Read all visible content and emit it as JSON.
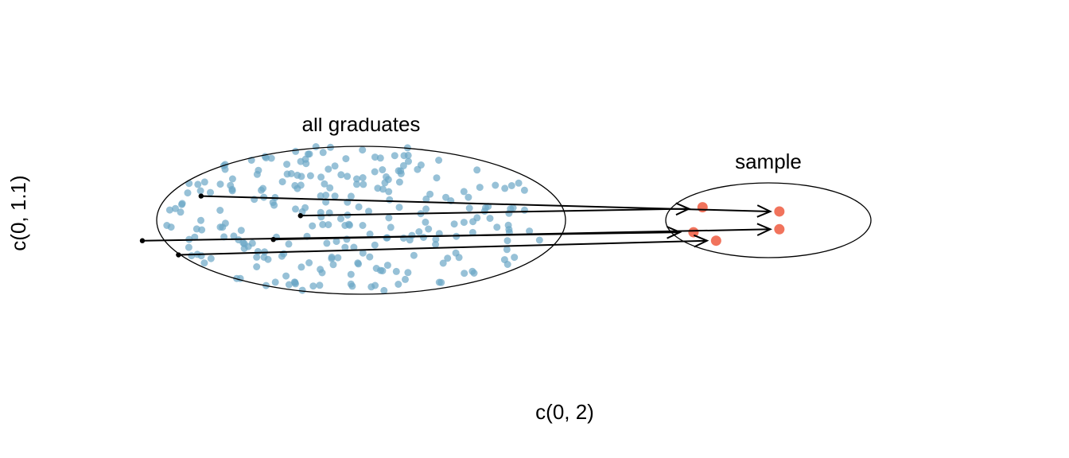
{
  "labels": {
    "population": "all graduates",
    "sample": "sample",
    "x_axis": "c(0, 2)",
    "y_axis": "c(0, 1.1)"
  },
  "colors": {
    "population_point": "#6BA6C6",
    "sample_point": "#EE5A3F",
    "ellipse_stroke": "#000000",
    "arrow": "#000000"
  },
  "chart_data": {
    "type": "scatter",
    "xlabel": "c(0, 2)",
    "ylabel": "c(0, 1.1)",
    "xlim": [
      0,
      2
    ],
    "ylim": [
      0,
      1.1
    ],
    "population": {
      "label": "all graduates",
      "center": [
        0.69,
        0.55
      ],
      "radii": [
        0.44,
        0.3
      ],
      "count": 260
    },
    "sample": {
      "label": "sample",
      "center": [
        1.59,
        0.55
      ],
      "radii": [
        0.22,
        0.15
      ],
      "points": [
        [
          1.46,
          0.592
        ],
        [
          1.63,
          0.578
        ],
        [
          1.44,
          0.509
        ],
        [
          1.49,
          0.481
        ],
        [
          1.63,
          0.519
        ]
      ]
    },
    "arrows": [
      {
        "from": [
          0.35,
          0.629
        ],
        "to": [
          1.61,
          0.578
        ]
      },
      {
        "from": [
          0.57,
          0.564
        ],
        "to": [
          1.43,
          0.587
        ]
      },
      {
        "from": [
          0.22,
          0.481
        ],
        "to": [
          1.41,
          0.509
        ]
      },
      {
        "from": [
          0.3,
          0.434
        ],
        "to": [
          1.47,
          0.481
        ]
      },
      {
        "from": [
          0.51,
          0.485
        ],
        "to": [
          1.61,
          0.519
        ]
      }
    ]
  }
}
